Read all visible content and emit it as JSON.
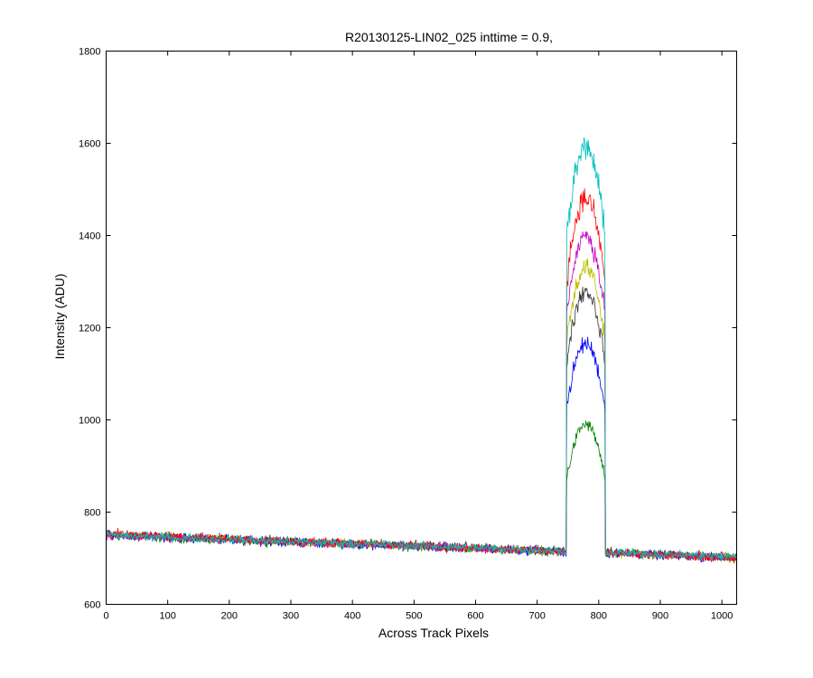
{
  "chart_data": {
    "type": "line",
    "title": "R20130125-LIN02_025 inttime = 0.9,",
    "xlabel": "Across Track Pixels",
    "ylabel": "Intensity (ADU)",
    "xlim": [
      0,
      1024
    ],
    "ylim": [
      600,
      1800
    ],
    "xticks": [
      0,
      100,
      200,
      300,
      400,
      500,
      600,
      700,
      800,
      900,
      1000
    ],
    "yticks": [
      600,
      800,
      1000,
      1200,
      1400,
      1600,
      1800
    ],
    "grid": false,
    "legend": "none",
    "noise_amplitude": 14,
    "series": [
      {
        "color": "#008000",
        "peak_height": 990,
        "baseline_start": 748,
        "baseline_end": 702,
        "peak_x_range": [
          748,
          810
        ]
      },
      {
        "color": "#0000ff",
        "peak_height": 1165,
        "baseline_start": 750,
        "baseline_end": 700,
        "peak_x_range": [
          748,
          810
        ]
      },
      {
        "color": "#333333",
        "peak_height": 1280,
        "baseline_start": 752,
        "baseline_end": 703,
        "peak_x_range": [
          748,
          810
        ]
      },
      {
        "color": "#bfbf00",
        "peak_height": 1330,
        "baseline_start": 751,
        "baseline_end": 701,
        "peak_x_range": [
          748,
          810
        ]
      },
      {
        "color": "#bf00bf",
        "peak_height": 1400,
        "baseline_start": 749,
        "baseline_end": 702,
        "peak_x_range": [
          748,
          810
        ]
      },
      {
        "color": "#ff0000",
        "peak_height": 1480,
        "baseline_start": 753,
        "baseline_end": 700,
        "peak_x_range": [
          748,
          810
        ]
      },
      {
        "color": "#00bfbf",
        "peak_height": 1590,
        "baseline_start": 750,
        "baseline_end": 703,
        "peak_x_range": [
          748,
          810
        ]
      }
    ]
  }
}
